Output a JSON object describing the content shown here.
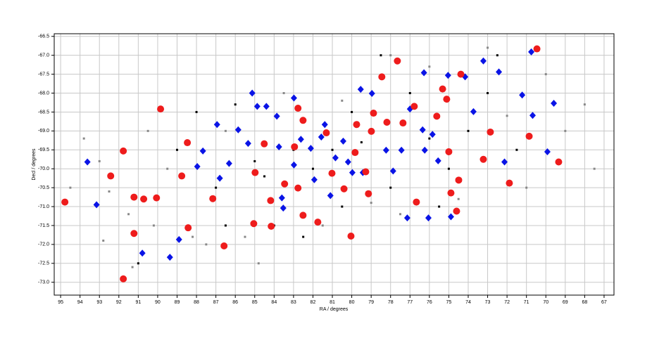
{
  "chart_data": {
    "type": "scatter",
    "x_label": "RA / degrees",
    "y_label": "Decl / degrees",
    "xlim": [
      95.33,
      66.49
    ],
    "ylim": [
      -73.34,
      -66.43
    ],
    "xticks": [
      95,
      94,
      93,
      92,
      91,
      90,
      89,
      88,
      87,
      86,
      85,
      84,
      83,
      82,
      81,
      80,
      79,
      78,
      77,
      76,
      75,
      74,
      73,
      72,
      71,
      70,
      69,
      68,
      67
    ],
    "yticks": [
      -66.5,
      {
        "value": -67,
        "label": "-67.0"
      },
      -67.5,
      {
        "value": -68,
        "label": "-68.0"
      },
      -68.5,
      {
        "value": -69,
        "label": "-69.0"
      },
      -69.5,
      {
        "value": -70,
        "label": "-70.0"
      },
      -70.5,
      {
        "value": -71,
        "label": "-71.0"
      },
      -71.5,
      {
        "value": -72,
        "label": "-72.0"
      },
      -72.5,
      {
        "value": -73,
        "label": "-73.0"
      }
    ],
    "grid": true,
    "series": [
      {
        "color": "#888888",
        "marker": "square",
        "x": [
          93.8,
          93.0,
          92.5,
          91.5,
          92.8,
          91.3,
          90.5,
          89.5,
          90.2,
          88.2,
          87.5,
          86.5,
          85.5,
          84.8,
          83.5,
          81.5,
          80.5,
          79.0,
          78.0,
          77.5,
          76.0,
          74.5,
          73.0,
          72.0,
          71.0,
          70.0,
          69.0,
          68.0,
          67.5,
          94.5
        ],
        "y": [
          -69.2,
          -69.8,
          -70.6,
          -71.2,
          -71.9,
          -72.6,
          -69.0,
          -70.0,
          -71.5,
          -71.8,
          -72.0,
          -69.0,
          -71.8,
          -72.5,
          -68.0,
          -71.5,
          -68.2,
          -70.9,
          -67.0,
          -71.2,
          -67.3,
          -70.8,
          -66.8,
          -68.6,
          -70.5,
          -67.5,
          -69.0,
          -68.3,
          -70.0,
          -70.5
        ]
      },
      {
        "color": "#000000",
        "marker": "square",
        "x": [
          86.0,
          85.0,
          84.5,
          83.0,
          82.0,
          81.0,
          80.0,
          79.5,
          78.5,
          77.0,
          76.0,
          75.0,
          74.0,
          73.0,
          72.5,
          71.5,
          87.0,
          86.5,
          84.0,
          82.5,
          89.0,
          80.5,
          78.0,
          75.5,
          91.0,
          88.0
        ],
        "y": [
          -68.3,
          -69.8,
          -70.2,
          -69.5,
          -70.0,
          -69.5,
          -68.5,
          -69.3,
          -67.0,
          -68.0,
          -69.2,
          -70.0,
          -69.0,
          -68.0,
          -67.0,
          -69.5,
          -70.5,
          -71.5,
          -71.5,
          -71.8,
          -69.5,
          -71.0,
          -70.5,
          -71.0,
          -72.5,
          -68.5
        ]
      },
      {
        "color": "#0a14e6",
        "marker": "diamond",
        "x": [
          93.62,
          93.15,
          90.79,
          89.37,
          88.9,
          87.67,
          87.96,
          86.94,
          86.8,
          86.32,
          85.85,
          85.34,
          85.13,
          84.87,
          84.4,
          83.86,
          83.75,
          83.6,
          83.53,
          82.98,
          82.98,
          82.62,
          82.11,
          81.93,
          81.57,
          81.39,
          81.1,
          80.84,
          80.44,
          80.19,
          79.97,
          79.54,
          79.43,
          78.96,
          78.23,
          77.87,
          77.44,
          77.0,
          76.28,
          76.35,
          76.24,
          75.84,
          75.55,
          75.04,
          74.89,
          76.05,
          77.14,
          74.16,
          73.73,
          73.22,
          72.42,
          72.13,
          71.22,
          70.68,
          70.75,
          69.92,
          69.59
        ],
        "y": [
          -69.82,
          -70.95,
          -72.23,
          -72.34,
          -71.87,
          -69.53,
          -69.94,
          -68.83,
          -70.25,
          -69.86,
          -68.97,
          -69.33,
          -68.0,
          -68.35,
          -68.35,
          -68.61,
          -69.42,
          -70.77,
          -71.04,
          -69.9,
          -68.13,
          -69.22,
          -69.46,
          -70.29,
          -69.16,
          -68.83,
          -70.71,
          -69.71,
          -69.27,
          -69.82,
          -70.1,
          -67.9,
          -70.1,
          -68.01,
          -69.51,
          -70.06,
          -69.51,
          -68.42,
          -67.46,
          -68.97,
          -69.51,
          -69.09,
          -69.79,
          -67.53,
          -71.27,
          -71.3,
          -71.3,
          -67.57,
          -68.49,
          -67.15,
          -67.44,
          -69.82,
          -68.05,
          -68.59,
          -66.91,
          -69.55,
          -68.27
        ]
      },
      {
        "color": "#ee1c1c",
        "marker": "circle",
        "x": [
          94.78,
          91.77,
          92.42,
          91.22,
          90.72,
          90.06,
          91.22,
          91.77,
          89.85,
          88.47,
          88.76,
          88.43,
          86.58,
          87.16,
          84.98,
          84.51,
          85.05,
          84.15,
          84.18,
          83.46,
          82.77,
          82.51,
          82.95,
          82.77,
          82.51,
          81.75,
          81.31,
          81.02,
          80.4,
          79.83,
          79.75,
          78.99,
          78.88,
          78.45,
          78.19,
          79.28,
          79.14,
          80.04,
          77.65,
          77.36,
          76.78,
          76.67,
          75.32,
          75.11,
          75.62,
          75.0,
          74.89,
          74.6,
          74.49,
          74.38,
          72.86,
          73.22,
          71.88,
          70.86,
          70.46,
          69.34
        ],
        "y": [
          -70.88,
          -69.53,
          -70.19,
          -70.75,
          -70.8,
          -70.77,
          -71.71,
          -72.91,
          -68.42,
          -69.31,
          -70.19,
          -71.56,
          -72.04,
          -70.79,
          -70.1,
          -69.34,
          -71.45,
          -71.52,
          -70.84,
          -70.4,
          -68.4,
          -68.72,
          -69.42,
          -70.51,
          -71.23,
          -71.41,
          -69.05,
          -70.12,
          -70.53,
          -69.57,
          -68.83,
          -69.01,
          -68.53,
          -67.57,
          -68.77,
          -70.08,
          -70.66,
          -71.78,
          -67.15,
          -68.79,
          -68.35,
          -70.88,
          -67.89,
          -68.16,
          -68.61,
          -69.55,
          -70.64,
          -71.12,
          -70.3,
          -67.5,
          -69.03,
          -69.75,
          -70.38,
          -69.14,
          -66.83,
          -69.82
        ]
      }
    ]
  }
}
